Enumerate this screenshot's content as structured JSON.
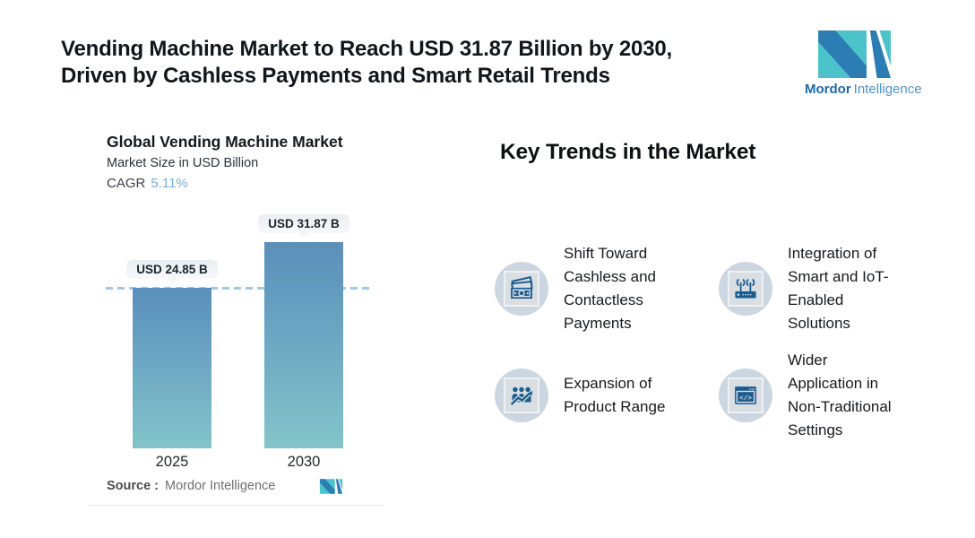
{
  "header": {
    "headline": "Vending Machine Market to Reach USD 31.87 Billion by 2030,\nDriven by Cashless Payments and Smart Retail Trends"
  },
  "logo": {
    "brand_bold": "Mordor",
    "brand_light": "Intelligence"
  },
  "chart": {
    "title": "Global Vending Machine Market",
    "subtitle": "Market Size in USD Billion",
    "cagr_label": "CAGR",
    "cagr_value": "5.11%",
    "source_label": "Source :",
    "source_value": "Mordor Intelligence"
  },
  "chart_data": {
    "type": "bar",
    "categories": [
      "2025",
      "2030"
    ],
    "values": [
      24.85,
      31.87
    ],
    "value_labels": [
      "USD 24.85 B",
      "USD 31.87 B"
    ],
    "title": "Global Vending Machine Market",
    "ylabel": "Market Size in USD Billion",
    "cagr_percent": 5.11,
    "reference_line": 24.85,
    "ylim": [
      0,
      31.87
    ],
    "grid": false,
    "legend": false,
    "bar_gradient_top": "#5a8fbb",
    "bar_gradient_bottom": "#83c4c9",
    "dashed_line_color": "#a7c6e5"
  },
  "trends": {
    "heading": "Key Trends in the Market",
    "items": [
      {
        "icon": "cash-payments-icon",
        "label": "Shift Toward\nCashless and\nContactless\nPayments"
      },
      {
        "icon": "iot-router-icon",
        "label": "Integration of\nSmart and IoT-\nEnabled\nSolutions"
      },
      {
        "icon": "product-range-icon",
        "label": "Expansion of\nProduct Range"
      },
      {
        "icon": "non-traditional-settings-icon",
        "label": "Wider\nApplication in\nNon-Traditional\nSettings"
      }
    ]
  },
  "colors": {
    "brand_teal": "#4cc2cb",
    "brand_blue": "#2c7db4",
    "icon_glyph_blue": "#1c5c8d",
    "icon_circle_bg": "#ccd6e1",
    "cagr_value_blue": "#76aedd"
  }
}
